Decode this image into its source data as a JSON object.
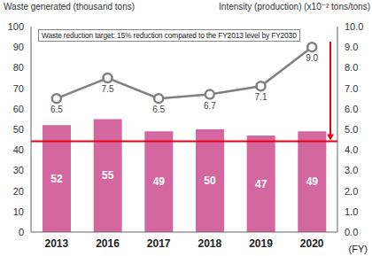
{
  "chart_data": {
    "type": "bar",
    "categories": [
      "2013",
      "2016",
      "2017",
      "2018",
      "2019",
      "2020"
    ],
    "x_label": "(FY)",
    "y_label": "Waste generated (thousand tons)",
    "y2_label": "Intensity (production) (x10⁻² tons/tons)",
    "annotation": "Waste reduction target: 15% reduction compared to the FY2013 level by FY2030",
    "target_value": 44.2,
    "target_color": "#e60012",
    "ylim": [
      0,
      100
    ],
    "yticks": [
      0,
      10,
      20,
      30,
      40,
      50,
      60,
      70,
      80,
      90,
      100
    ],
    "y2lim": [
      0,
      10
    ],
    "y2ticks": [
      {
        "value": 0,
        "label": "0.0"
      },
      {
        "value": 1,
        "label": "1.0"
      },
      {
        "value": 2,
        "label": "2.0"
      },
      {
        "value": 3,
        "label": "3.0"
      },
      {
        "value": 4,
        "label": "4.0"
      },
      {
        "value": 5,
        "label": "5.0"
      },
      {
        "value": 6,
        "label": "6.0"
      },
      {
        "value": 7,
        "label": "7.0"
      },
      {
        "value": 8,
        "label": "8.0"
      },
      {
        "value": 9,
        "label": "9.0"
      },
      {
        "value": 10,
        "label": "10.0"
      }
    ],
    "grid": false,
    "series": [
      {
        "type": "bar",
        "color": "#d4679f",
        "values": [
          52,
          55,
          49,
          50,
          47,
          49
        ],
        "data_labels": true
      },
      {
        "type": "line",
        "axis": "y2",
        "color": "#808080",
        "marker": "circle",
        "values": [
          6.5,
          7.5,
          6.5,
          6.7,
          7.1,
          9.0
        ],
        "value_labels": [
          "6.5",
          "7.5",
          "6.5",
          "6.7",
          "7.1",
          "9.0"
        ],
        "data_labels": true
      }
    ]
  }
}
